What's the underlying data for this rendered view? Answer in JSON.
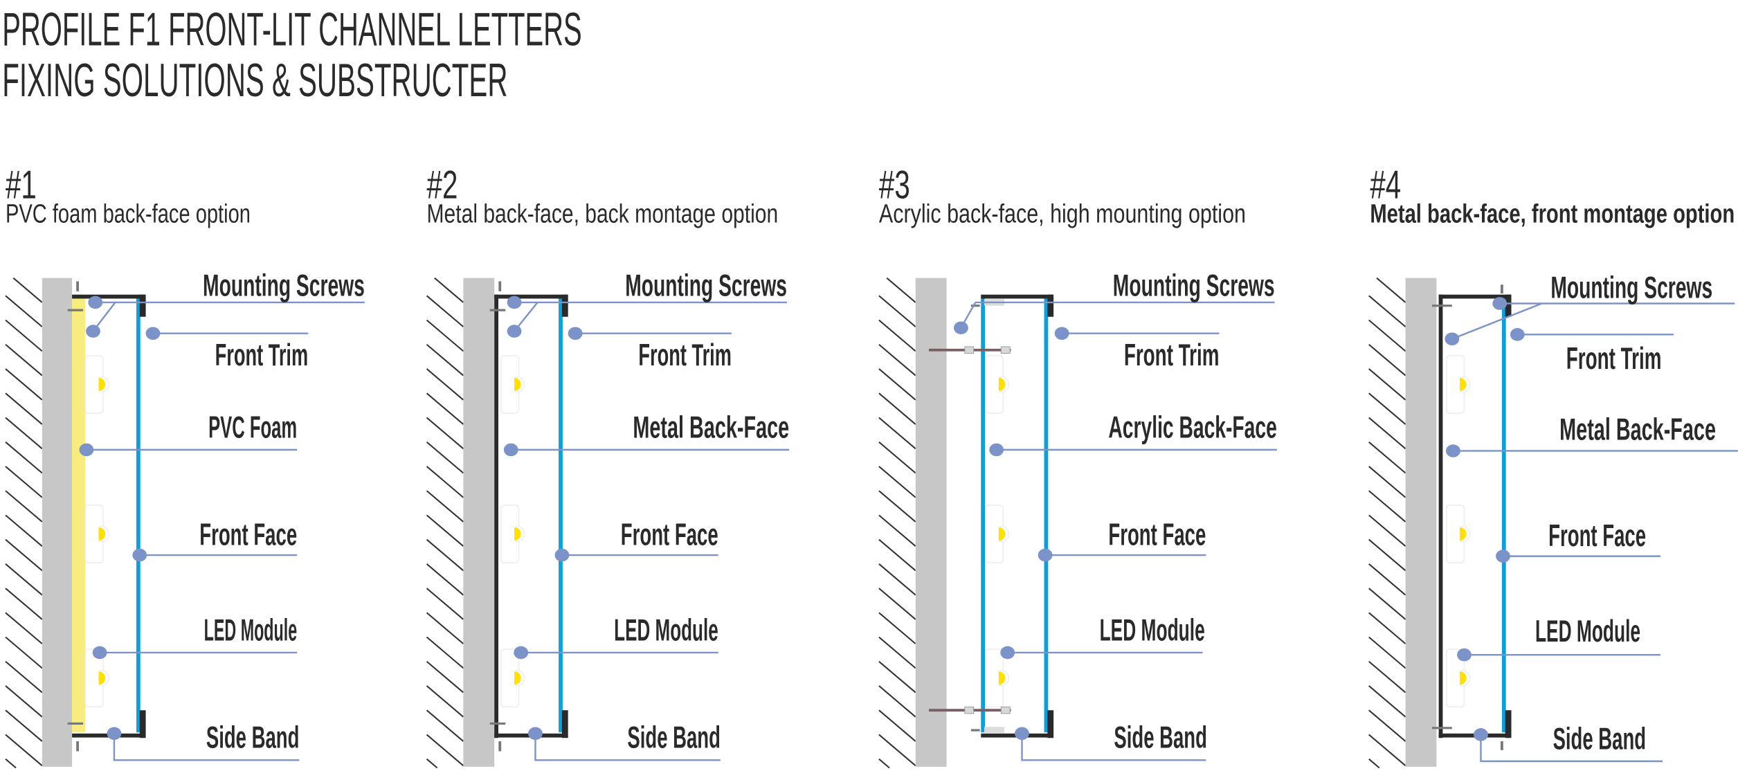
{
  "title": {
    "line1": "PROFILE F1 FRONT-LIT CHANNEL LETTERS",
    "line2": "FIXING SOLUTIONS & SUBSTRUCTER"
  },
  "options": [
    {
      "number": "#1",
      "subtitle": "PVC foam back-face option",
      "labels": [
        "Mounting Screws",
        "Front Trim",
        "PVC Foam",
        "Front Face",
        "LED Module",
        "Side Band"
      ]
    },
    {
      "number": "#2",
      "subtitle": "Metal back-face, back montage option",
      "labels": [
        "Mounting Screws",
        "Front Trim",
        "Metal Back-Face",
        "Front Face",
        "LED Module",
        "Side Band"
      ]
    },
    {
      "number": "#3",
      "subtitle": "Acrylic back-face, high mounting option",
      "labels": [
        "Mounting Screws",
        "Front Trim",
        "Acrylic Back-Face",
        "Front Face",
        "LED Module",
        "Side Band"
      ]
    },
    {
      "number": "#4",
      "subtitle": "Metal back-face, front montage option",
      "labels": [
        "Mounting Screws",
        "Front Trim",
        "Metal Back-Face",
        "Front Face",
        "LED Module",
        "Side Band"
      ]
    }
  ],
  "colors": {
    "text": "#2a2a2a",
    "wall": "#c6c7c6",
    "hatch": "#333333",
    "profile": "#2a2a2a",
    "front_face": "#0aa0e0",
    "pvc_foam": "#f8ec7e",
    "callout": "#7b93c9",
    "led": "#ffe000",
    "screw": "#777777"
  }
}
